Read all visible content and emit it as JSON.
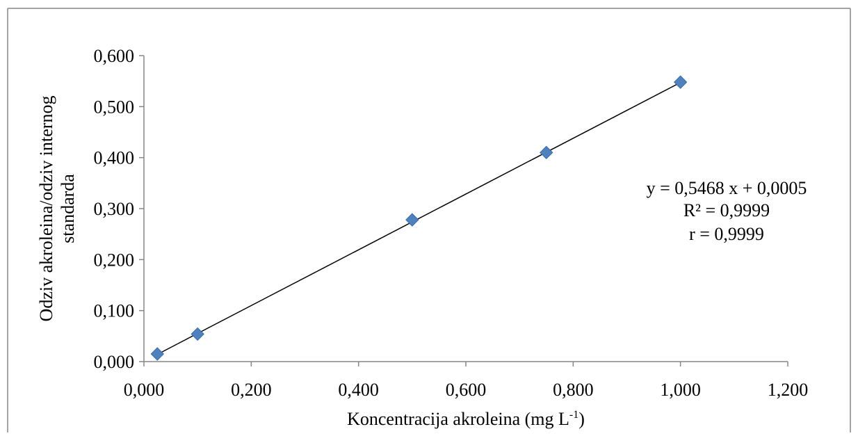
{
  "chart_data": {
    "type": "scatter",
    "title": "",
    "xlabel": {
      "text": "Koncentracija akroleina (mg L",
      "sup": "-1",
      "suffix": ")"
    },
    "ylabel": {
      "line1": "Odziv akroleina/odziv internog",
      "line2": "standarda"
    },
    "xlim": [
      0,
      1.2
    ],
    "ylim": [
      0,
      0.6
    ],
    "x_ticks": [
      0,
      0.2,
      0.4,
      0.6,
      0.8,
      1.0,
      1.2
    ],
    "x_tick_labels": [
      "0,000",
      "0,200",
      "0,400",
      "0,600",
      "0,800",
      "1,000",
      "1,200"
    ],
    "y_ticks": [
      0,
      0.1,
      0.2,
      0.3,
      0.4,
      0.5,
      0.6
    ],
    "y_tick_labels": [
      "0,000",
      "0,100",
      "0,200",
      "0,300",
      "0,400",
      "0,500",
      "0,600"
    ],
    "grid": false,
    "legend": "none",
    "marker": "diamond",
    "series": [
      {
        "x": [
          0.025,
          0.1,
          0.5,
          0.75,
          1.0
        ],
        "y": [
          0.015,
          0.054,
          0.278,
          0.41,
          0.548
        ],
        "color": "#4F81BD"
      }
    ],
    "trendline": {
      "slope": 0.5468,
      "intercept": 0.0005,
      "x_range": [
        0.025,
        1.0
      ],
      "color": "#000000"
    },
    "annotations": {
      "equation": "y = 0,5468 x + 0,0005",
      "r_squared": "R² = 0,9999",
      "r": "r = 0,9999"
    }
  }
}
